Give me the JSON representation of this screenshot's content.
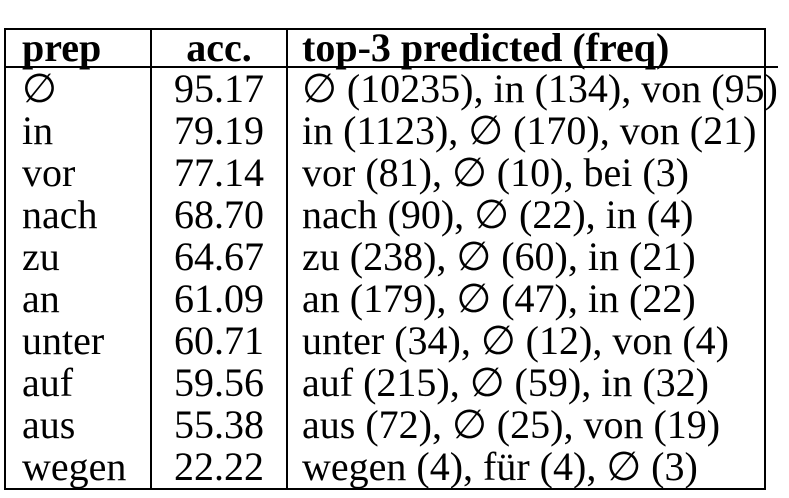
{
  "page": {
    "background": "#ffffff",
    "text_color": "#000000",
    "border_color": "#000000"
  },
  "chart_data": {
    "type": "table",
    "title": "",
    "columns": [
      "prep",
      "acc.",
      "top-3 predicted (freq)"
    ],
    "rows": [
      [
        "∅",
        "95.17",
        "∅ (10235), in (134), von (95)"
      ],
      [
        "in",
        "79.19",
        "in (1123), ∅ (170), von (21)"
      ],
      [
        "vor",
        "77.14",
        "vor (81), ∅ (10), bei (3)"
      ],
      [
        "nach",
        "68.70",
        "nach (90), ∅ (22), in (4)"
      ],
      [
        "zu",
        "64.67",
        "zu (238), ∅ (60), in (21)"
      ],
      [
        "an",
        "61.09",
        "an (179), ∅ (47), in (22)"
      ],
      [
        "unter",
        "60.71",
        "unter (34), ∅ (12), von (4)"
      ],
      [
        "auf",
        "59.56",
        "auf (215), ∅ (59), in (32)"
      ],
      [
        "aus",
        "55.38",
        "aus (72), ∅ (25), von (19)"
      ],
      [
        "wegen",
        "22.22",
        "wegen (4), für (4), ∅ (3)"
      ]
    ]
  }
}
